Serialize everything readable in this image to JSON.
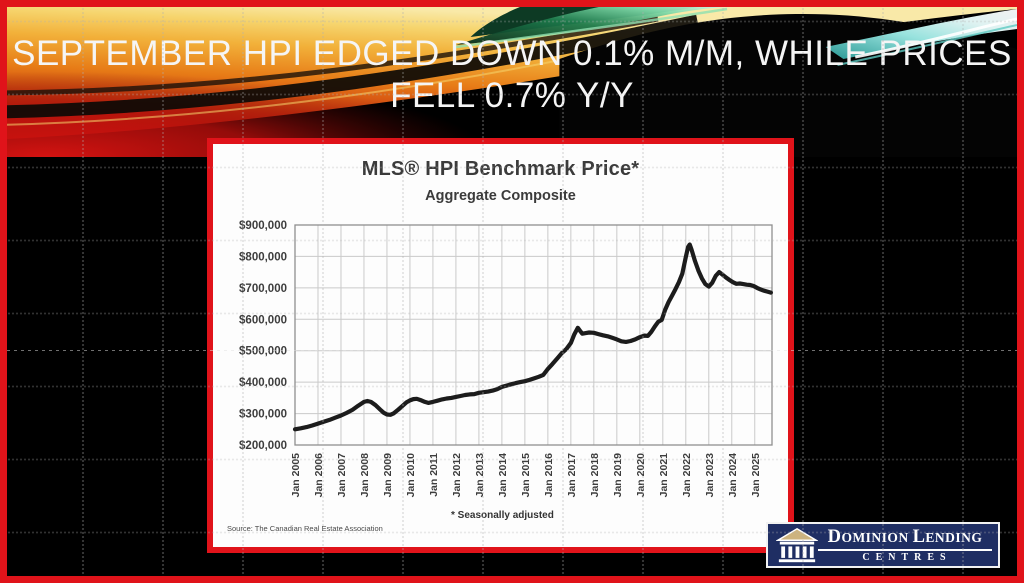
{
  "slide": {
    "title_line1": "SEPTEMBER HPI EDGED DOWN 0.1% M/M, WHILE PRICES",
    "title_line2": "FELL 0.7% Y/Y"
  },
  "chart": {
    "title": "MLS® HPI Benchmark Price*",
    "subtitle": "Aggregate Composite",
    "source": "Source: The Canadian Real Estate Association",
    "footnote": "* Seasonally adjusted"
  },
  "logo": {
    "name_part1_initial": "D",
    "name_part1_rest": "OMINION ",
    "name_part2_initial": "L",
    "name_part2_rest": "ENDING",
    "line2": "CENTRES"
  },
  "colors": {
    "slide_border_red": "#e0131a",
    "card_border_red": "#e0131a",
    "line_color": "#1c1c1c",
    "logo_navy": "#1f2e63"
  },
  "chart_data": {
    "type": "line",
    "title": "MLS® HPI Benchmark Price*",
    "subtitle": "Aggregate Composite",
    "xlabel": "",
    "ylabel": "",
    "grid": true,
    "legend": false,
    "ylim": [
      200000,
      900000
    ],
    "xlim": [
      2005.0,
      2025.75
    ],
    "yticks": [
      200000,
      300000,
      400000,
      500000,
      600000,
      700000,
      800000,
      900000
    ],
    "ytick_labels": [
      "$200,000",
      "$300,000",
      "$400,000",
      "$500,000",
      "$600,000",
      "$700,000",
      "$800,000",
      "$900,000"
    ],
    "xticks": [
      2005,
      2006,
      2007,
      2008,
      2009,
      2010,
      2011,
      2012,
      2013,
      2014,
      2015,
      2016,
      2017,
      2018,
      2019,
      2020,
      2021,
      2022,
      2023,
      2024,
      2025
    ],
    "xtick_labels": [
      "Jan 2005",
      "Jan 2006",
      "Jan 2007",
      "Jan 2008",
      "Jan 2009",
      "Jan 2010",
      "Jan 2011",
      "Jan 2012",
      "Jan 2013",
      "Jan 2014",
      "Jan 2015",
      "Jan 2016",
      "Jan 2017",
      "Jan 2018",
      "Jan 2019",
      "Jan 2020",
      "Jan 2021",
      "Jan 2022",
      "Jan 2023",
      "Jan 2024",
      "Jan 2025"
    ],
    "series": [
      {
        "name": "MLS HPI Benchmark Price, Aggregate Composite (seasonally adjusted)",
        "x": [
          2005.0,
          2005.25,
          2005.5,
          2005.75,
          2006.0,
          2006.25,
          2006.5,
          2006.75,
          2007.0,
          2007.25,
          2007.5,
          2007.75,
          2008.0,
          2008.15,
          2008.3,
          2008.5,
          2008.7,
          2008.85,
          2009.0,
          2009.15,
          2009.3,
          2009.5,
          2009.7,
          2009.85,
          2010.0,
          2010.15,
          2010.3,
          2010.5,
          2010.65,
          2010.8,
          2011.0,
          2011.2,
          2011.4,
          2011.6,
          2011.8,
          2012.0,
          2012.2,
          2012.4,
          2012.6,
          2012.8,
          2013.0,
          2013.2,
          2013.4,
          2013.6,
          2013.8,
          2014.0,
          2014.2,
          2014.4,
          2014.6,
          2014.8,
          2015.0,
          2015.2,
          2015.4,
          2015.6,
          2015.8,
          2016.0,
          2016.2,
          2016.4,
          2016.6,
          2016.8,
          2017.0,
          2017.15,
          2017.3,
          2017.4,
          2017.5,
          2017.65,
          2017.8,
          2018.0,
          2018.2,
          2018.4,
          2018.6,
          2018.8,
          2019.0,
          2019.2,
          2019.4,
          2019.6,
          2019.8,
          2020.0,
          2020.2,
          2020.35,
          2020.5,
          2020.65,
          2020.8,
          2020.95,
          2021.1,
          2021.25,
          2021.4,
          2021.55,
          2021.7,
          2021.85,
          2022.0,
          2022.1,
          2022.17,
          2022.25,
          2022.4,
          2022.55,
          2022.7,
          2022.85,
          2023.0,
          2023.15,
          2023.3,
          2023.45,
          2023.6,
          2023.75,
          2023.9,
          2024.05,
          2024.2,
          2024.35,
          2024.5,
          2024.65,
          2024.8,
          2024.95,
          2025.1,
          2025.25,
          2025.4,
          2025.55,
          2025.7
        ],
        "y": [
          250000,
          253000,
          257000,
          262000,
          268000,
          274000,
          280000,
          287000,
          294000,
          302000,
          312000,
          325000,
          337000,
          340000,
          337000,
          327000,
          313000,
          303000,
          297000,
          296000,
          301000,
          313000,
          326000,
          336000,
          342000,
          346000,
          347000,
          342000,
          337000,
          334000,
          337000,
          341000,
          345000,
          348000,
          350000,
          353000,
          356000,
          359000,
          361000,
          362000,
          366000,
          368000,
          370000,
          373000,
          378000,
          385000,
          389000,
          393000,
          397000,
          400000,
          403000,
          407000,
          412000,
          417000,
          423000,
          442000,
          458000,
          475000,
          492000,
          505000,
          525000,
          552000,
          573000,
          563000,
          554000,
          556000,
          558000,
          557000,
          553000,
          549000,
          546000,
          541000,
          536000,
          530000,
          528000,
          531000,
          536000,
          543000,
          548000,
          547000,
          560000,
          577000,
          592000,
          598000,
          630000,
          655000,
          675000,
          696000,
          718000,
          745000,
          798000,
          830000,
          838000,
          822000,
          785000,
          755000,
          730000,
          712000,
          704000,
          716000,
          738000,
          750000,
          742000,
          733000,
          725000,
          718000,
          713000,
          714000,
          712000,
          710000,
          709000,
          706000,
          700000,
          695000,
          691000,
          688000,
          685000
        ]
      }
    ]
  }
}
